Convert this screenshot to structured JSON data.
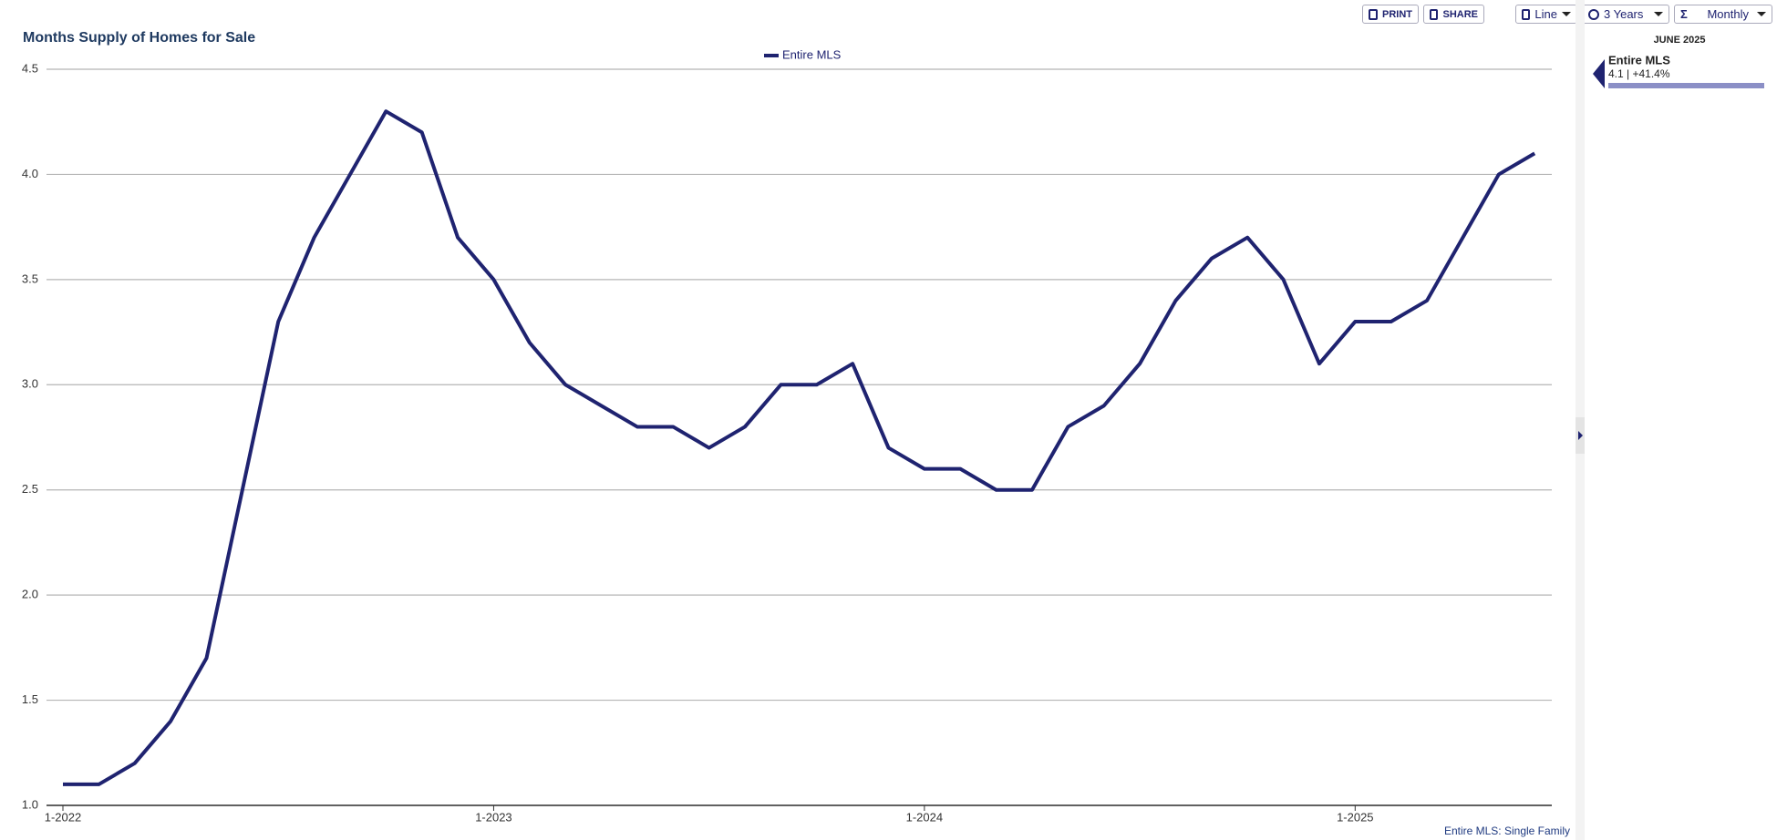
{
  "toolbar": {
    "print": "PRINT",
    "share": "SHARE",
    "chart_type": "Line",
    "range": "3 Years",
    "interval": "Monthly"
  },
  "chart_data": {
    "type": "line",
    "title": "Months Supply of Homes for Sale",
    "categories": [
      "1-2022",
      null,
      null,
      null,
      null,
      null,
      null,
      null,
      null,
      null,
      null,
      null,
      "1-2023",
      null,
      null,
      null,
      null,
      null,
      null,
      null,
      null,
      null,
      null,
      null,
      "1-2024",
      null,
      null,
      null,
      null,
      null,
      null,
      null,
      null,
      null,
      null,
      null,
      "1-2025",
      null,
      null,
      null,
      null,
      null
    ],
    "series": [
      {
        "name": "Entire MLS",
        "color": "#1f2370",
        "values": [
          1.1,
          1.1,
          1.2,
          1.4,
          1.7,
          2.5,
          3.3,
          3.7,
          4.0,
          4.3,
          4.2,
          3.7,
          3.5,
          3.2,
          3.0,
          2.9,
          2.8,
          2.8,
          2.7,
          2.8,
          3.0,
          3.0,
          3.1,
          2.7,
          2.6,
          2.6,
          2.5,
          2.5,
          2.8,
          2.9,
          3.1,
          3.4,
          3.6,
          3.7,
          3.5,
          3.1,
          3.3,
          3.3,
          3.4,
          3.7,
          4.0,
          4.1
        ]
      }
    ],
    "ylim": [
      1.0,
      4.5
    ],
    "yticks": [
      {
        "value": 1,
        "label": "1.0"
      },
      1.5,
      {
        "value": 2,
        "label": "2.0"
      },
      2.5,
      {
        "value": 3,
        "label": "3.0"
      },
      3.5,
      {
        "value": 4,
        "label": "4.0"
      },
      4.5
    ],
    "grid": true,
    "footnote": "Entire MLS: Single Family"
  },
  "sidebar": {
    "period": "JUNE 2025",
    "series_name": "Entire MLS",
    "summary": "4.1 | +41.4%"
  }
}
